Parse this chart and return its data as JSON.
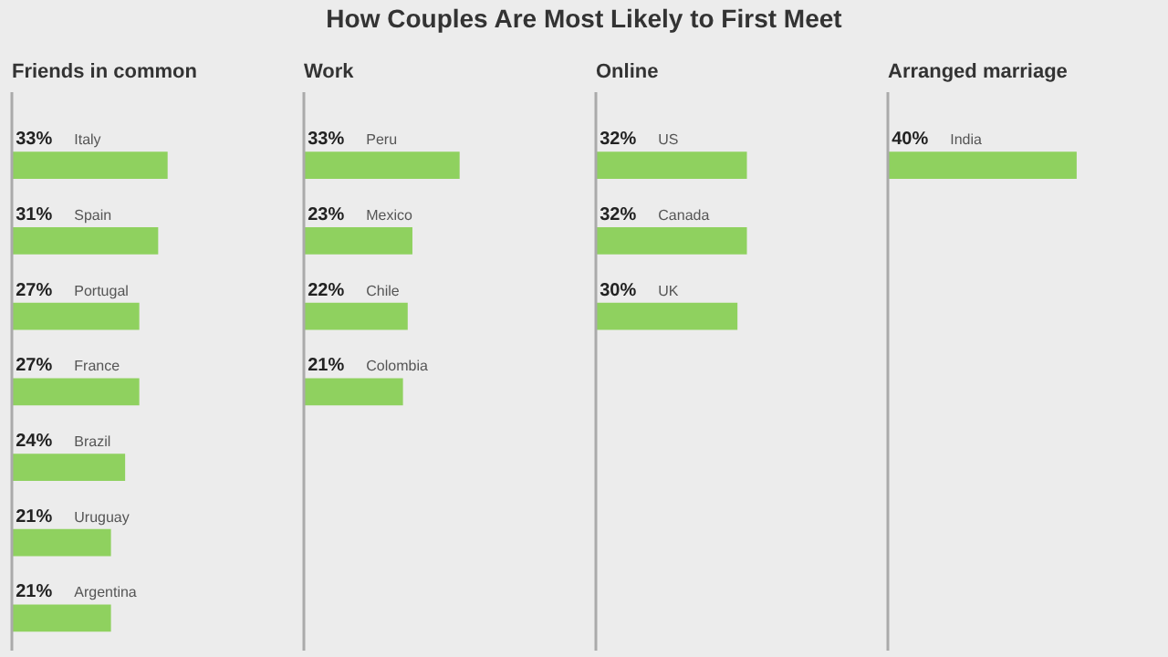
{
  "chart_data": [
    {
      "type": "other",
      "title": "How Couples Are Most Likely to First Meet"
    },
    {
      "type": "bar",
      "orientation": "horizontal",
      "title": "Friends in common",
      "categories": [
        "Italy",
        "Spain",
        "Portugal",
        "France",
        "Brazil",
        "Uruguay",
        "Argentina"
      ],
      "values": [
        33,
        31,
        27,
        27,
        24,
        21,
        21
      ],
      "value_labels": [
        "33%",
        "31%",
        "27%",
        "27%",
        "24%",
        "21%",
        "21%"
      ],
      "color": "#8fd15f",
      "tick_labels": false
    },
    {
      "type": "bar",
      "orientation": "horizontal",
      "title": "Work",
      "categories": [
        "Peru",
        "Mexico",
        "Chile",
        "Colombia"
      ],
      "values": [
        33,
        23,
        22,
        21
      ],
      "value_labels": [
        "33%",
        "23%",
        "22%",
        "21%"
      ],
      "color": "#8fd15f",
      "tick_labels": false
    },
    {
      "type": "bar",
      "orientation": "horizontal",
      "title": "Online",
      "categories": [
        "US",
        "Canada",
        "UK"
      ],
      "values": [
        32,
        32,
        30
      ],
      "value_labels": [
        "32%",
        "32%",
        "30%"
      ],
      "color": "#8fd15f",
      "tick_labels": false
    },
    {
      "type": "bar",
      "orientation": "horizontal",
      "title": "Arranged marriage",
      "categories": [
        "India"
      ],
      "values": [
        40
      ],
      "value_labels": [
        "40%"
      ],
      "color": "#8fd15f",
      "tick_labels": false
    }
  ]
}
